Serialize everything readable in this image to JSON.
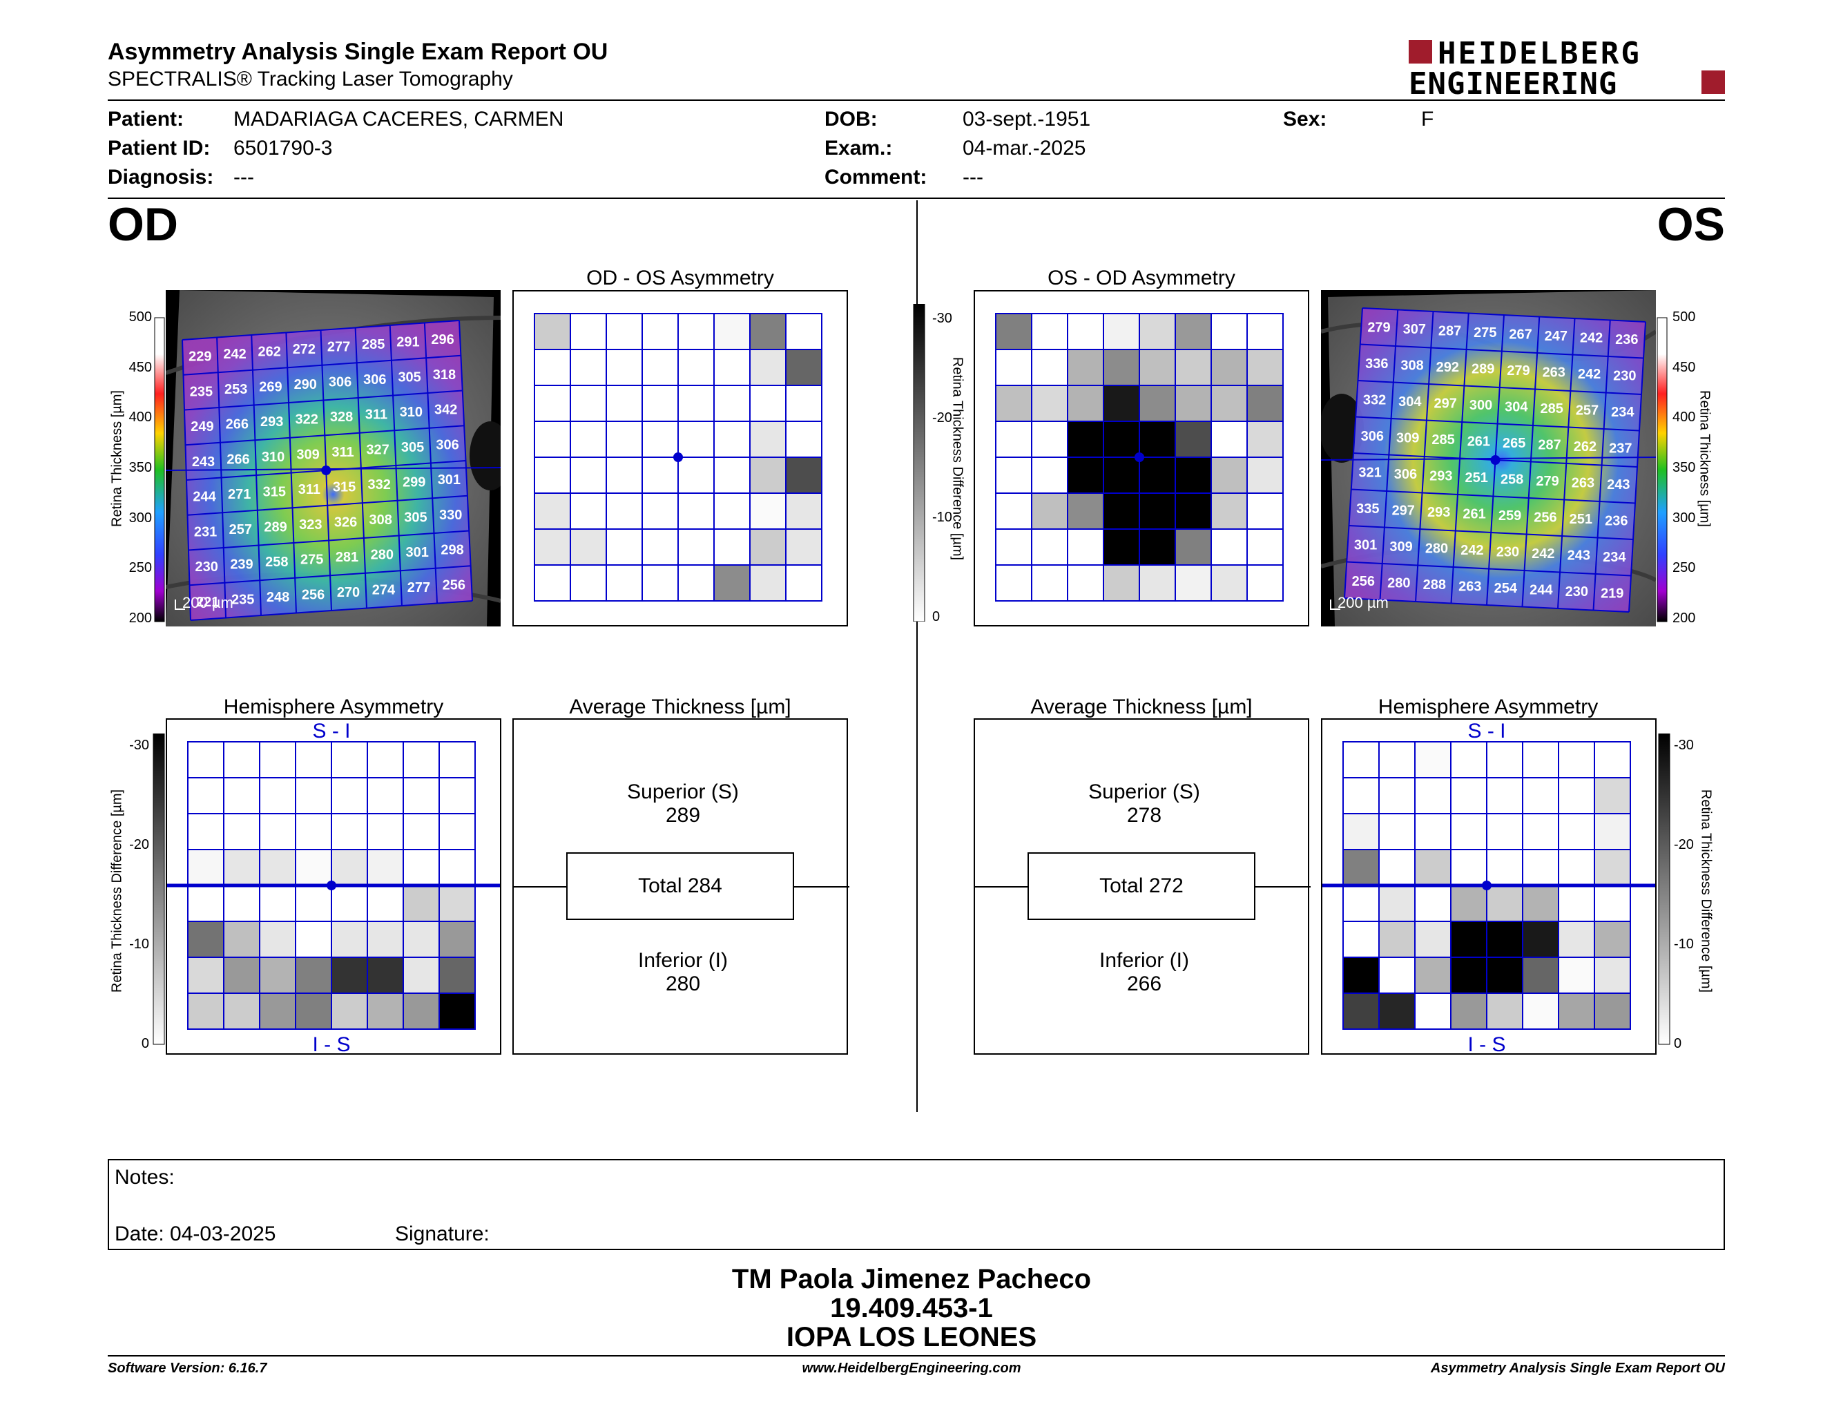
{
  "header": {
    "title": "Asymmetry Analysis Single Exam Report OU",
    "subtitle": "SPECTRALIS® Tracking Laser Tomography",
    "logo_top": "HEIDELBERG",
    "logo_bottom": "ENGINEERING"
  },
  "patient": {
    "patient_label": "Patient:",
    "patient_value": "MADARIAGA CACERES, CARMEN",
    "id_label": "Patient ID:",
    "id_value": "6501790-3",
    "diagnosis_label": "Diagnosis:",
    "diagnosis_value": "---",
    "dob_label": "DOB:",
    "dob_value": "03-sept.-1951",
    "exam_label": "Exam.:",
    "exam_value": "04-mar.-2025",
    "comment_label": "Comment:",
    "comment_value": "---",
    "sex_label": "Sex:",
    "sex_value": "F"
  },
  "eyes": {
    "od": "OD",
    "os": "OS"
  },
  "titles": {
    "od_os": "OD - OS Asymmetry",
    "os_od": "OS - OD Asymmetry",
    "hemi": "Hemisphere Asymmetry",
    "avg": "Average Thickness [µm]"
  },
  "axes": {
    "retina_thickness": "Retina Thickness [µm]",
    "retina_diff": "Retina Thickness Difference [µm]",
    "thickness_ticks": [
      "500",
      "450",
      "400",
      "350",
      "300",
      "250",
      "200"
    ],
    "diff_ticks": [
      "-30",
      "-20",
      "-10",
      "0"
    ],
    "scalebar": "200 µm",
    "si": "S - I",
    "is": "I - S"
  },
  "od_thickness": [
    [
      229,
      242,
      262,
      272,
      277,
      285,
      291,
      296
    ],
    [
      235,
      253,
      269,
      290,
      306,
      306,
      305,
      318
    ],
    [
      249,
      266,
      293,
      322,
      328,
      311,
      310,
      342
    ],
    [
      243,
      266,
      310,
      309,
      311,
      327,
      305,
      306
    ],
    [
      244,
      271,
      315,
      311,
      315,
      332,
      299,
      301
    ],
    [
      231,
      257,
      289,
      323,
      326,
      308,
      305,
      330
    ],
    [
      230,
      239,
      258,
      275,
      281,
      280,
      301,
      298
    ],
    [
      221,
      235,
      248,
      256,
      270,
      274,
      277,
      256
    ]
  ],
  "os_thickness": [
    [
      279,
      307,
      287,
      275,
      267,
      247,
      242,
      236
    ],
    [
      336,
      308,
      292,
      289,
      279,
      263,
      242,
      230
    ],
    [
      332,
      304,
      297,
      300,
      304,
      285,
      257,
      234
    ],
    [
      306,
      309,
      285,
      261,
      265,
      287,
      262,
      237
    ],
    [
      321,
      306,
      293,
      251,
      258,
      279,
      263,
      243
    ],
    [
      335,
      297,
      293,
      261,
      259,
      256,
      251,
      236
    ],
    [
      301,
      309,
      280,
      242,
      230,
      242,
      243,
      234
    ],
    [
      256,
      280,
      288,
      263,
      254,
      244,
      230,
      219
    ]
  ],
  "od_os_grid": [
    [
      0.2,
      0,
      0,
      0,
      0,
      0.03,
      0.5,
      0
    ],
    [
      0,
      0,
      0,
      0,
      0,
      0,
      0.1,
      0.6
    ],
    [
      0,
      0,
      0,
      0,
      0,
      0,
      0,
      0
    ],
    [
      0,
      0,
      0,
      0,
      0,
      0,
      0.1,
      0
    ],
    [
      0,
      0,
      0,
      0,
      0,
      0,
      0.2,
      0.7
    ],
    [
      0.1,
      0,
      0,
      0,
      0,
      0,
      0.02,
      0.1
    ],
    [
      0.1,
      0.1,
      0,
      0,
      0,
      0,
      0.2,
      0.1
    ],
    [
      0,
      0,
      0,
      0,
      0,
      0.45,
      0.1,
      0
    ]
  ],
  "os_od_grid": [
    [
      0.5,
      0,
      0,
      0.05,
      0.15,
      0.4,
      0,
      0
    ],
    [
      0,
      0,
      0.3,
      0.45,
      0.25,
      0.2,
      0.3,
      0.2
    ],
    [
      0.25,
      0.15,
      0.3,
      0.9,
      0.45,
      0.3,
      0.25,
      0.5
    ],
    [
      0,
      0,
      1,
      1,
      1,
      0.7,
      0,
      0.15
    ],
    [
      0,
      0,
      1,
      1,
      1,
      1,
      0.25,
      0.1
    ],
    [
      0,
      0.25,
      0.45,
      1,
      1,
      1,
      0.2,
      0
    ],
    [
      0,
      0,
      0,
      1,
      1,
      0.5,
      0,
      0
    ],
    [
      0,
      0,
      0,
      0.2,
      0.1,
      0.05,
      0.1,
      0
    ]
  ],
  "od_hemi_grid": [
    [
      0,
      0,
      0,
      0,
      0,
      0,
      0,
      0
    ],
    [
      0,
      0,
      0,
      0,
      0,
      0,
      0,
      0
    ],
    [
      0,
      0,
      0,
      0,
      0,
      0,
      0,
      0
    ],
    [
      0.03,
      0.1,
      0.1,
      0.02,
      0.1,
      0.05,
      0,
      0
    ],
    [
      0,
      0,
      0,
      0,
      0,
      0,
      0.2,
      0.15
    ],
    [
      0.55,
      0.25,
      0.1,
      0,
      0.1,
      0.1,
      0.1,
      0.4
    ],
    [
      0.15,
      0.4,
      0.3,
      0.5,
      0.8,
      0.8,
      0.1,
      0.6
    ],
    [
      0.2,
      0.2,
      0.4,
      0.5,
      0.2,
      0.3,
      0.4,
      1
    ]
  ],
  "os_hemi_grid": [
    [
      0,
      0,
      0.02,
      0,
      0,
      0,
      0,
      0
    ],
    [
      0,
      0,
      0,
      0,
      0,
      0,
      0,
      0.15
    ],
    [
      0.05,
      0,
      0,
      0,
      0,
      0,
      0,
      0.05
    ],
    [
      0.5,
      0,
      0.2,
      0,
      0,
      0,
      0,
      0.15
    ],
    [
      0,
      0.1,
      0,
      0.3,
      0.2,
      0.3,
      0,
      0
    ],
    [
      0,
      0.2,
      0.1,
      1,
      1,
      0.9,
      0.1,
      0.3
    ],
    [
      1,
      0,
      0.3,
      1,
      1,
      0.6,
      0.02,
      0.1
    ],
    [
      0.75,
      0.85,
      0,
      0.4,
      0.2,
      0.02,
      0.35,
      0.4
    ]
  ],
  "od_avg": {
    "sup_label": "Superior (S)",
    "sup_value": "289",
    "total": "Total 284",
    "inf_label": "Inferior (I)",
    "inf_value": "280"
  },
  "os_avg": {
    "sup_label": "Superior (S)",
    "sup_value": "278",
    "total": "Total 272",
    "inf_label": "Inferior (I)",
    "inf_value": "266"
  },
  "notes": {
    "notes_label": "Notes:",
    "date_label": "Date: 04-03-2025",
    "signature_label": "Signature:"
  },
  "signature": {
    "line1": "TM Paola Jimenez Pacheco",
    "line2": "19.409.453-1",
    "line3": "IOPA LOS LEONES"
  },
  "footer": {
    "left": "Software Version: 6.16.7",
    "center": "www.HeidelbergEngineering.com",
    "right": "Asymmetry Analysis Single Exam Report OU"
  },
  "colors": {
    "grid_blue": "#0000cc"
  }
}
